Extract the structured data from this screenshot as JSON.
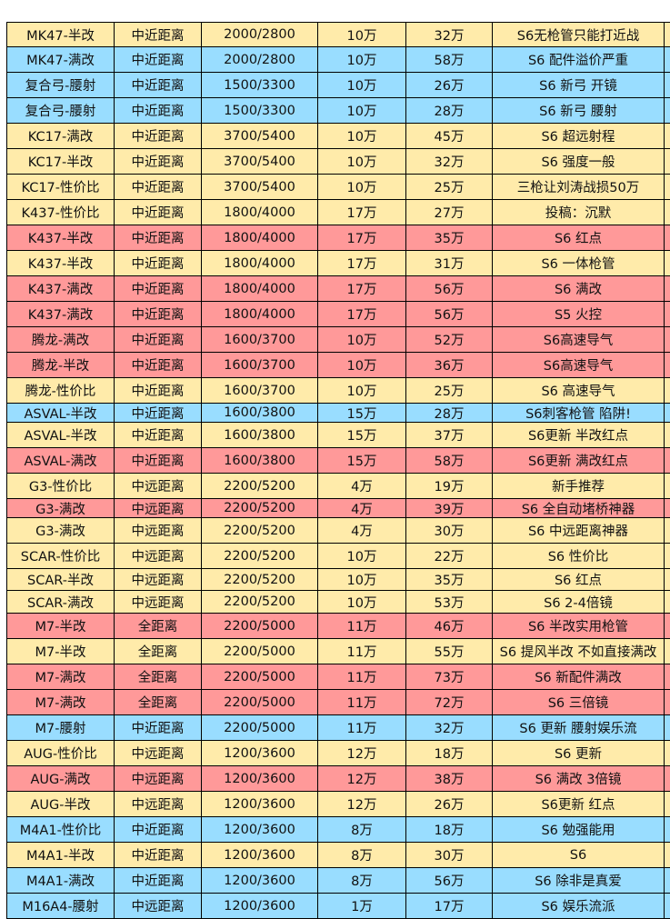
{
  "colors": {
    "yellow": "#FFEBAA",
    "blue": "#99DDFF",
    "red": "#FF9999"
  },
  "rows": [
    {
      "color": "yellow",
      "cells": [
        "MK47-半改",
        "中近距离",
        "2000/2800",
        "10万",
        "32万",
        "S6无枪管只能打近战"
      ]
    },
    {
      "color": "blue",
      "cells": [
        "MK47-满改",
        "中近距离",
        "2000/2800",
        "10万",
        "58万",
        "S6 配件溢价严重"
      ]
    },
    {
      "color": "blue",
      "cells": [
        "复合弓-腰射",
        "中近距离",
        "1500/3300",
        "10万",
        "26万",
        "S6 新弓 开镜"
      ]
    },
    {
      "color": "blue",
      "cells": [
        "复合弓-腰射",
        "中近距离",
        "1500/3300",
        "10万",
        "28万",
        "S6 新弓 腰射"
      ]
    },
    {
      "color": "yellow",
      "cells": [
        "KC17-满改",
        "中近距离",
        "3700/5400",
        "10万",
        "45万",
        "S6 超远射程"
      ]
    },
    {
      "color": "yellow",
      "cells": [
        "KC17-半改",
        "中近距离",
        "3700/5400",
        "10万",
        "32万",
        "S6 强度一般"
      ]
    },
    {
      "color": "yellow",
      "cells": [
        "KC17-性价比",
        "中近距离",
        "3700/5400",
        "10万",
        "25万",
        "三枪让刘涛战损50万"
      ]
    },
    {
      "color": "yellow",
      "cells": [
        "K437-性价比",
        "中近距离",
        "1800/4000",
        "17万",
        "27万",
        "投稿：沉默"
      ]
    },
    {
      "color": "red",
      "cells": [
        "K437-半改",
        "中近距离",
        "1800/4000",
        "17万",
        "35万",
        "S6 红点"
      ]
    },
    {
      "color": "yellow",
      "cells": [
        "K437-半改",
        "中近距离",
        "1800/4000",
        "17万",
        "31万",
        "S6 一体枪管"
      ]
    },
    {
      "color": "red",
      "cells": [
        "K437-满改",
        "中近距离",
        "1800/4000",
        "17万",
        "56万",
        "S6 满改"
      ]
    },
    {
      "color": "red",
      "cells": [
        "K437-满改",
        "中近距离",
        "1800/4000",
        "17万",
        "56万",
        "S5 火控"
      ]
    },
    {
      "color": "red",
      "cells": [
        "腾龙-满改",
        "中近距离",
        "1600/3700",
        "10万",
        "52万",
        "S6高速导气"
      ]
    },
    {
      "color": "red",
      "cells": [
        "腾龙-半改",
        "中近距离",
        "1600/3700",
        "10万",
        "36万",
        "S6高速导气"
      ]
    },
    {
      "color": "yellow",
      "cells": [
        "腾龙-性价比",
        "中近距离",
        "1600/3700",
        "10万",
        "25万",
        "S6 高速导气"
      ]
    },
    {
      "color": "blue",
      "cells": [
        "ASVAL-半改",
        "中近距离",
        "1600/3800",
        "15万",
        "28万",
        "S6刺客枪管 陷阱!"
      ]
    },
    {
      "color": "yellow",
      "cells": [
        "ASVAL-半改",
        "中近距离",
        "1600/3800",
        "15万",
        "37万",
        "S6更新 半改红点"
      ]
    },
    {
      "color": "red",
      "cells": [
        "ASVAL-满改",
        "中近距离",
        "1600/3800",
        "15万",
        "58万",
        "S6更新 满改红点"
      ]
    },
    {
      "color": "yellow",
      "cells": [
        "G3-性价比",
        "中远距离",
        "2200/5200",
        "4万",
        "19万",
        "新手推荐"
      ]
    },
    {
      "color": "red",
      "cells": [
        "G3-满改",
        "中远距离",
        "2200/5200",
        "4万",
        "39万",
        "S6 全自动堵桥神器"
      ]
    },
    {
      "color": "yellow",
      "cells": [
        "G3-满改",
        "中远距离",
        "2200/5200",
        "4万",
        "30万",
        "S6 中远距离神器"
      ]
    },
    {
      "color": "yellow",
      "cells": [
        "SCAR-性价比",
        "中远距离",
        "2200/5200",
        "10万",
        "22万",
        "S6 性价比"
      ]
    },
    {
      "color": "yellow",
      "cells": [
        "SCAR-半改",
        "中远距离",
        "2200/5200",
        "10万",
        "35万",
        "S6 红点"
      ]
    },
    {
      "color": "yellow",
      "cells": [
        "SCAR-满改",
        "中远距离",
        "2200/5200",
        "10万",
        "53万",
        "S6 2-4倍镜"
      ]
    },
    {
      "color": "red",
      "cells": [
        "M7-半改",
        "全距离",
        "2200/5000",
        "11万",
        "46万",
        "S6 半改实用枪管"
      ]
    },
    {
      "color": "yellow",
      "cells": [
        "M7-半改",
        "全距离",
        "2200/5000",
        "11万",
        "55万",
        "S6 提风半改 不如直接满改"
      ]
    },
    {
      "color": "red",
      "cells": [
        "M7-满改",
        "全距离",
        "2200/5000",
        "11万",
        "73万",
        "S6 新配件满改"
      ]
    },
    {
      "color": "red",
      "cells": [
        "M7-满改",
        "全距离",
        "2200/5000",
        "11万",
        "72万",
        "S6  三倍镜"
      ]
    },
    {
      "color": "blue",
      "cells": [
        "M7-腰射",
        "中近距离",
        "2200/5000",
        "11万",
        "32万",
        "S6 更新 腰射娱乐流"
      ]
    },
    {
      "color": "yellow",
      "cells": [
        "AUG-性价比",
        "中远距离",
        "1200/3600",
        "12万",
        "18万",
        "S6 更新"
      ]
    },
    {
      "color": "red",
      "cells": [
        "AUG-满改",
        "中远距离",
        "1200/3600",
        "12万",
        "38万",
        "S6 满改 3倍镜"
      ]
    },
    {
      "color": "yellow",
      "cells": [
        "AUG-半改",
        "中远距离",
        "1200/3600",
        "12万",
        "26万",
        "S6更新 红点"
      ]
    },
    {
      "color": "blue",
      "cells": [
        "M4A1-性价比",
        "中近距离",
        "1200/3600",
        "8万",
        "18万",
        "S6 勉强能用"
      ]
    },
    {
      "color": "yellow",
      "cells": [
        "M4A1-半改",
        "中近距离",
        "1200/3600",
        "8万",
        "30万",
        "S6"
      ]
    },
    {
      "color": "blue",
      "cells": [
        "M4A1-满改",
        "中近距离",
        "1200/3600",
        "8万",
        "56万",
        "S6 除非是真爱"
      ]
    },
    {
      "color": "blue",
      "cells": [
        "M16A4-腰射",
        "中远距离",
        "1200/3600",
        "1万",
        "17万",
        "S6 娱乐流派"
      ]
    }
  ]
}
